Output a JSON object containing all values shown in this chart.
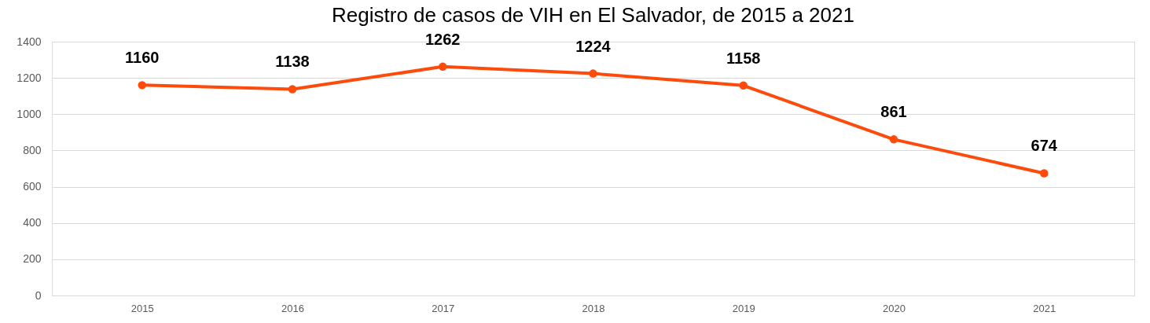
{
  "chart_data": {
    "type": "line",
    "title": "Registro de casos de VIH en El Salvador, de 2015 a 2021",
    "categories": [
      "2015",
      "2016",
      "2017",
      "2018",
      "2019",
      "2020",
      "2021"
    ],
    "series": [
      {
        "color": "#fe4a0a",
        "values": [
          1160,
          1138,
          1262,
          1224,
          1158,
          861,
          674
        ]
      }
    ],
    "ylim": [
      0,
      1400
    ],
    "yticks": [
      0,
      200,
      400,
      600,
      800,
      1000,
      1200,
      1400
    ],
    "grid": "y",
    "marker": "circle",
    "line_style": "solid",
    "data_labels": true
  }
}
